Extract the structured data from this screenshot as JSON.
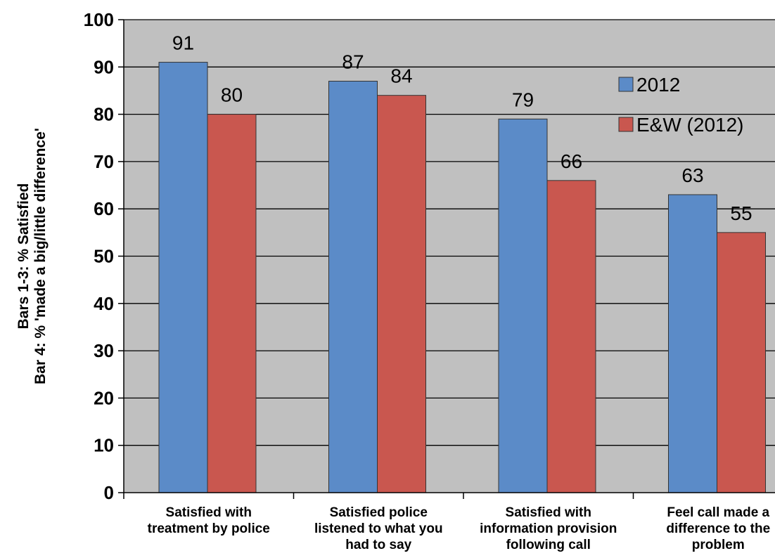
{
  "chart_data": {
    "type": "bar",
    "categories": [
      [
        "Satisfied with",
        "treatment by police"
      ],
      [
        "Satisfied police",
        "listened to what you",
        "had to say"
      ],
      [
        "Satisfied with",
        "information provision",
        "following call"
      ],
      [
        "Feel call made a",
        "difference to the",
        "problem"
      ]
    ],
    "series": [
      {
        "name": "2012",
        "values": [
          91,
          87,
          79,
          63
        ],
        "color": "#5B8BC8"
      },
      {
        "name": "E&W (2012)",
        "values": [
          80,
          84,
          66,
          55
        ],
        "color": "#C9574F"
      }
    ],
    "ylabel": [
      "Bars 1-3: % Satisfied",
      "Bar 4: % 'made a big/little difference'"
    ],
    "ylim": [
      0,
      100
    ],
    "yticks": [
      0,
      10,
      20,
      30,
      40,
      50,
      60,
      70,
      80,
      90,
      100
    ],
    "grid": true,
    "legend_position": "top-right",
    "plot_background": "#C0C0C0"
  }
}
